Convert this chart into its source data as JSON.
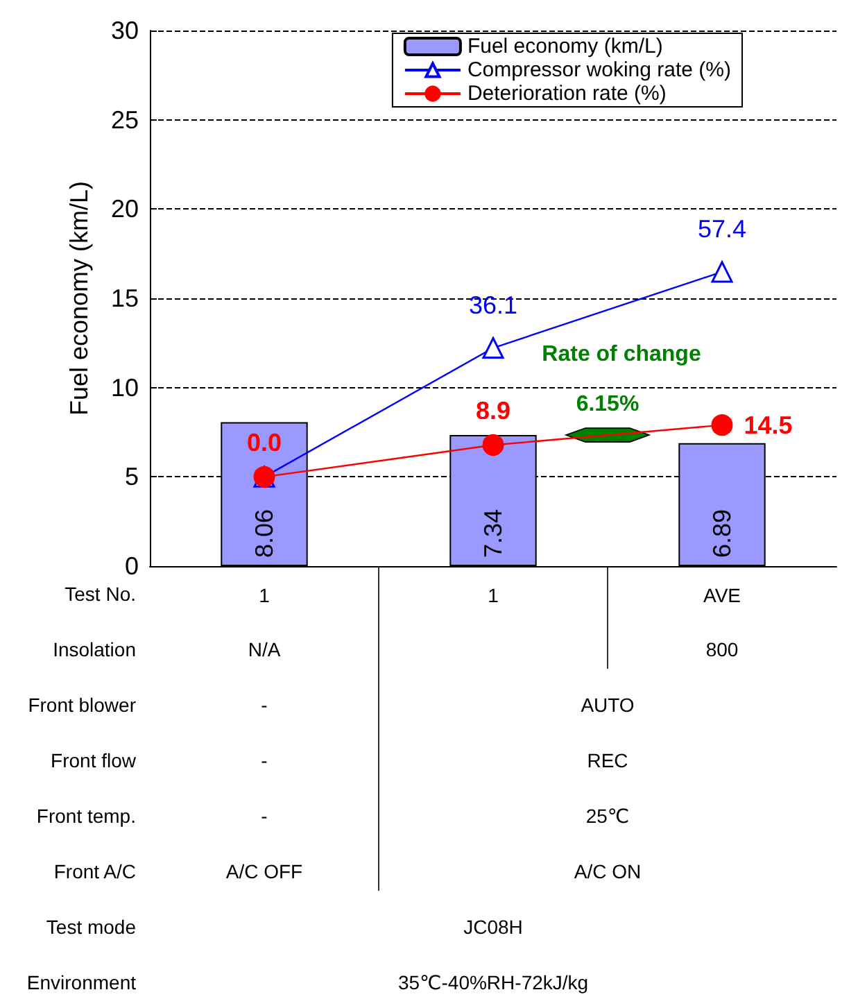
{
  "chart_data": {
    "type": "bar",
    "ylabel": "Fuel economy (km/L)",
    "xlabel": "Test No.",
    "categories": [
      "1",
      "1",
      "AVE"
    ],
    "series": [
      {
        "name": "Fuel economy (km/L)",
        "color": "#9999ff",
        "values": [
          8.06,
          7.34,
          6.89
        ],
        "value_labels": [
          "8.06",
          "7.34",
          "6.89"
        ]
      },
      {
        "name": "Compressor woking rate (%)",
        "type": "line",
        "axis": "y2",
        "color": "#0000ff",
        "marker": "triangle",
        "values": [
          0,
          36.1,
          57.4
        ],
        "value_labels": [
          null,
          "36.1",
          "57.4"
        ]
      },
      {
        "name": "Deterioration rate (%)",
        "type": "line",
        "axis": "y2",
        "color": "#ff0000",
        "marker": "circle",
        "values": [
          0,
          8.9,
          14.5
        ],
        "value_labels": [
          "0.0",
          "8.9",
          "14.5"
        ]
      }
    ],
    "ylim": [
      0,
      30
    ],
    "yticks": [
      0,
      5,
      10,
      15,
      20,
      25,
      30
    ],
    "y2lim": [
      -25,
      125
    ],
    "grid": "y",
    "legend": "top right",
    "annotations": [
      "Rate of change",
      "6.15%",
      "Insolation",
      "N/A",
      "800",
      "Front blower",
      "-",
      "AUTO",
      "Front flow",
      "-",
      "REC",
      "Front temp.",
      "-",
      "25℃",
      "Front A/C",
      "A/C OFF",
      "A/C ON",
      "Test mode",
      "JC08H",
      "Environment",
      "35℃-40%RH-72kJ/kg"
    ]
  }
}
